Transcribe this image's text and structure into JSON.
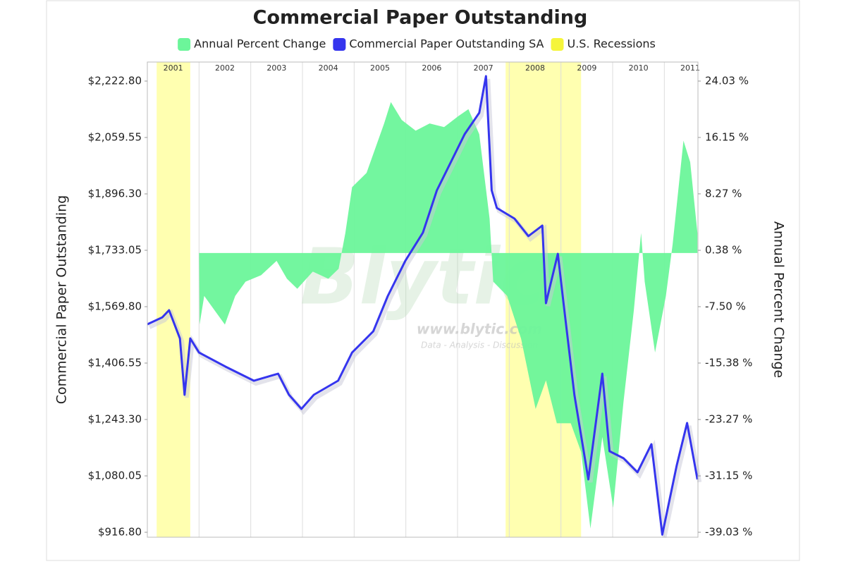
{
  "chart_data": {
    "type": "dual-axis",
    "title": "Commercial Paper Outstanding",
    "ylabel": "Commercial Paper Outstanding",
    "y2label": "Annual Percent Change",
    "watermark": [
      "Blytic",
      "www.blytic.com",
      "Data - Analysis - Discussion"
    ],
    "xlim": [
      2001,
      2011.65
    ],
    "xticks": [
      2001,
      2002,
      2003,
      2004,
      2005,
      2006,
      2007,
      2008,
      2009,
      2010,
      2011
    ],
    "ylim": [
      902.5,
      2277.9
    ],
    "yticks": [
      {
        "value": 916.8,
        "label": "$916.80"
      },
      {
        "value": 1080.05,
        "label": "$1,080.05"
      },
      {
        "value": 1243.3,
        "label": "$1,243.30"
      },
      {
        "value": 1406.55,
        "label": "$1,406.55"
      },
      {
        "value": 1569.8,
        "label": "$1,569.80"
      },
      {
        "value": 1733.05,
        "label": "$1,733.05"
      },
      {
        "value": 1896.3,
        "label": "$1,896.30"
      },
      {
        "value": 2059.55,
        "label": "$2,059.55"
      },
      {
        "value": 2222.8,
        "label": "$2,222.80"
      }
    ],
    "y2lim": [
      -39.72,
      26.69
    ],
    "y2ticks": [
      {
        "value": -39.03,
        "label": "-39.03 %"
      },
      {
        "value": -31.15,
        "label": "-31.15 %"
      },
      {
        "value": -23.27,
        "label": "-23.27 %"
      },
      {
        "value": -15.38,
        "label": "-15.38 %"
      },
      {
        "value": -7.5,
        "label": "-7.50 %"
      },
      {
        "value": 0.38,
        "label": "0.38 %"
      },
      {
        "value": 8.27,
        "label": "8.27 %"
      },
      {
        "value": 16.15,
        "label": "16.15 %"
      },
      {
        "value": 24.03,
        "label": "24.03 %"
      }
    ],
    "grid": true,
    "series": [
      {
        "name": "Annual Percent Change",
        "type": "area",
        "axis": "y2",
        "color": "#6cf59a",
        "x": [
          2002.0,
          2002.01,
          2002.1,
          2002.3,
          2002.5,
          2002.7,
          2002.9,
          2003.2,
          2003.5,
          2003.7,
          2003.9,
          2004.2,
          2004.5,
          2004.7,
          2004.83,
          2004.96,
          2005.24,
          2005.58,
          2005.71,
          2005.92,
          2006.19,
          2006.46,
          2006.74,
          2007.01,
          2007.21,
          2007.42,
          2007.62,
          2007.69,
          2007.96,
          2008.23,
          2008.51,
          2008.71,
          2008.92,
          2009.19,
          2009.39,
          2009.57,
          2009.8,
          2010.01,
          2010.21,
          2010.41,
          2010.55,
          2010.62,
          2010.82,
          2011.03,
          2011.16,
          2011.37,
          2011.5,
          2011.64
        ],
        "values": [
          0.38,
          -10.0,
          -6.0,
          -8.0,
          -10.0,
          -6.0,
          -4.0,
          -3.1,
          -1.1,
          -3.6,
          -5.0,
          -2.6,
          -3.6,
          -2.2,
          2.8,
          9.2,
          11.2,
          18.1,
          21.1,
          18.6,
          17.1,
          18.1,
          17.6,
          19.1,
          20.1,
          16.6,
          4.8,
          -4.0,
          -6.0,
          -12.0,
          -21.8,
          -17.8,
          -23.8,
          -23.8,
          -27.8,
          -38.5,
          -25.7,
          -35.6,
          -20.8,
          -8.0,
          2.8,
          -4.0,
          -13.9,
          -6.0,
          1.2,
          15.7,
          12.7,
          2.8
        ]
      },
      {
        "name": "Commercial Paper Outstanding SA",
        "type": "line",
        "color": "#3535ee",
        "x": [
          2001.0,
          2001.29,
          2001.42,
          2001.63,
          2001.72,
          2001.83,
          2002.0,
          2002.51,
          2003.06,
          2003.53,
          2003.74,
          2003.98,
          2004.22,
          2004.69,
          2004.96,
          2005.37,
          2005.65,
          2005.99,
          2006.33,
          2006.6,
          2006.87,
          2007.14,
          2007.42,
          2007.55,
          2007.66,
          2007.76,
          2008.1,
          2008.37,
          2008.64,
          2008.71,
          2008.94,
          2009.05,
          2009.26,
          2009.53,
          2009.8,
          2009.94,
          2010.21,
          2010.48,
          2010.75,
          2010.96,
          2011.24,
          2011.44,
          2011.64
        ],
        "values": [
          1518.8,
          1539.0,
          1559.6,
          1477.9,
          1314.7,
          1477.9,
          1437.0,
          1396.4,
          1355.5,
          1375.9,
          1314.7,
          1273.9,
          1314.7,
          1355.5,
          1437.0,
          1498.4,
          1600.4,
          1702.5,
          1784.1,
          1906.5,
          1988.1,
          2069.8,
          2131.0,
          2237.1,
          1906.5,
          1855.5,
          1824.9,
          1773.9,
          1804.5,
          1580.0,
          1722.8,
          1580.0,
          1314.7,
          1069.9,
          1375.9,
          1151.5,
          1131.1,
          1090.3,
          1171.8,
          910.0,
          1110.7,
          1233.1,
          1069.9
        ]
      },
      {
        "name": "U.S. Recessions",
        "type": "band",
        "color": "#ffffb0",
        "values": [
          {
            "start": 2001.18,
            "end": 2001.83
          },
          {
            "start": 2007.93,
            "end": 2009.39
          }
        ]
      }
    ]
  }
}
